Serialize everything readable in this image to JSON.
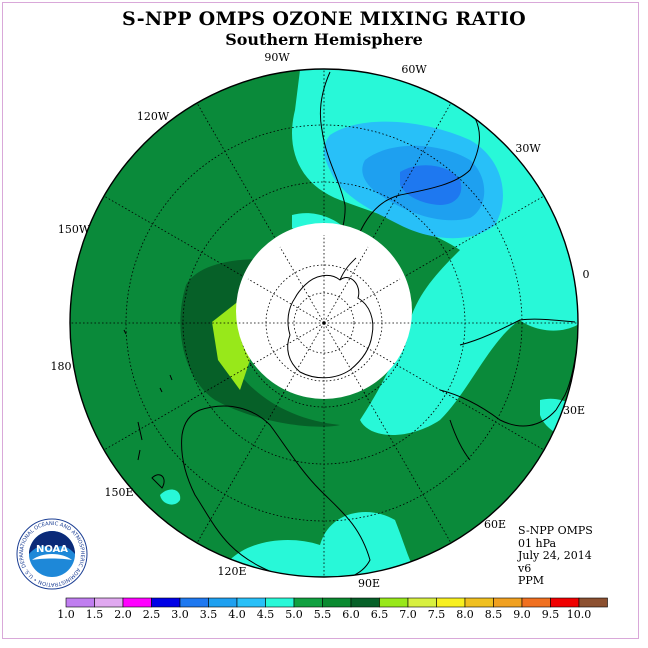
{
  "title": "S-NPP OMPS OZONE MIXING RATIO",
  "subtitle": "Southern Hemisphere",
  "longitude_labels": {
    "lon_90w": "90W",
    "lon_60w": "60W",
    "lon_30w": "30W",
    "lon_0": "0",
    "lon_30e": "30E",
    "lon_60e": "60E",
    "lon_90e": "90E",
    "lon_120e": "120E",
    "lon_150e": "150E",
    "lon_180": "180",
    "lon_150w": "150W",
    "lon_120w": "120W"
  },
  "info": {
    "instrument": "S-NPP OMPS",
    "level": "01 hPa",
    "date": "July 24, 2014",
    "version": "v6",
    "units": "PPM"
  },
  "logo": {
    "text": "NOAA",
    "ring_text": "NATIONAL OCEANIC AND ATMOSPHERIC ADMINISTRATION • U.S. DEPARTMENT OF COMMERCE •"
  },
  "colorbar": {
    "labels": [
      "1.0",
      "1.5",
      "2.0",
      "2.5",
      "3.0",
      "3.5",
      "4.0",
      "4.5",
      "5.0",
      "5.5",
      "6.0",
      "6.5",
      "7.0",
      "7.5",
      "8.0",
      "8.5",
      "9.0",
      "9.5",
      "10.0"
    ],
    "colors": [
      "#c07ef0",
      "#e0a8f0",
      "#ff00ff",
      "#0000e6",
      "#1e78f0",
      "#1ea0f0",
      "#28c0f8",
      "#28f8d8",
      "#10a040",
      "#0a8a30",
      "#066028",
      "#98e81a",
      "#d8f040",
      "#f8f020",
      "#f0c020",
      "#f0a020",
      "#f07020",
      "#f00000",
      "#8c5030"
    ]
  },
  "map_colors": {
    "ocean_green": "#0a8a3a",
    "dark_green": "#066028",
    "cyan": "#28f8d8",
    "light_blue": "#28c0f8",
    "mid_blue": "#1ea0f0",
    "blue": "#1e78f0",
    "lime": "#98e81a",
    "pole_hole": "#ffffff"
  }
}
